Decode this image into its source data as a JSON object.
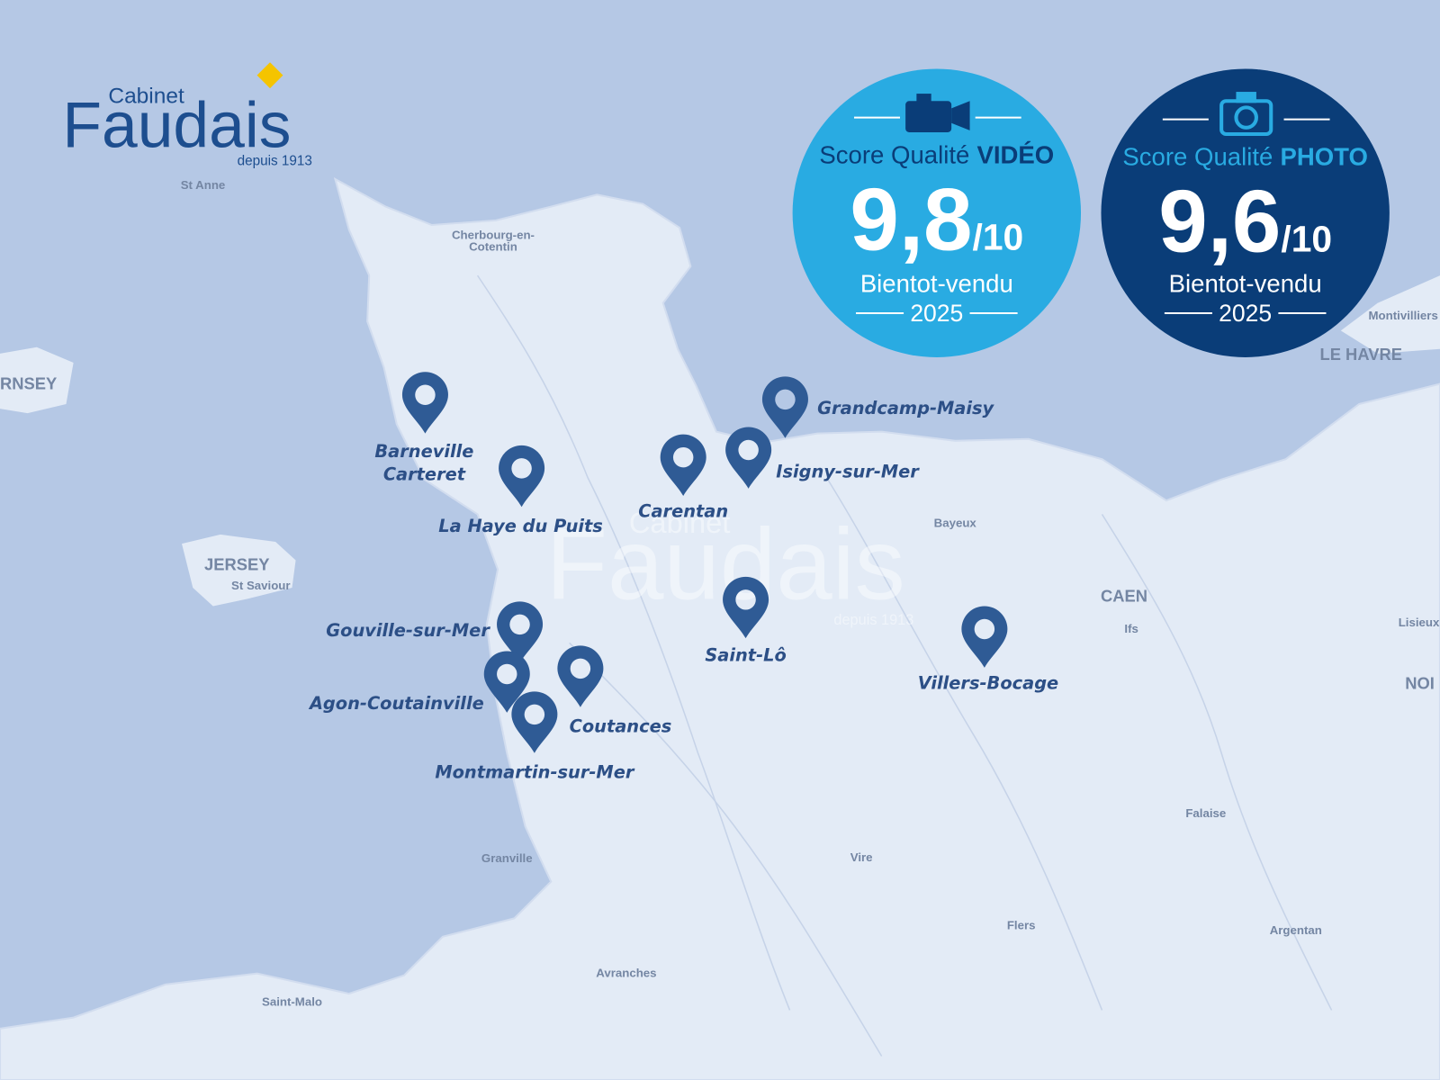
{
  "logo": {
    "small": "Cabinet",
    "main": "Faudais",
    "since": "depuis 1913"
  },
  "badges": [
    {
      "title_prefix": "Score Qualité",
      "title_strong": "VIDÉO",
      "score": "9,8",
      "scale": "/10",
      "brand": "Bientot-vendu",
      "year": "2025"
    },
    {
      "title_prefix": "Score Qualité",
      "title_strong": "PHOTO",
      "score": "9,6",
      "scale": "/10",
      "brand": "Bientot-vendu",
      "year": "2025"
    }
  ],
  "places": [
    {
      "lines": [
        "Barneville",
        "Carteret"
      ]
    },
    {
      "lines": [
        "La Haye du Puits"
      ]
    },
    {
      "lines": [
        "Carentan"
      ]
    },
    {
      "lines": [
        "Isigny-sur-Mer"
      ]
    },
    {
      "lines": [
        "Grandcamp-Maisy"
      ]
    },
    {
      "lines": [
        "Gouville-sur-Mer"
      ]
    },
    {
      "lines": [
        "Agon-Coutainville"
      ]
    },
    {
      "lines": [
        "Coutances"
      ]
    },
    {
      "lines": [
        "Montmartin-sur-Mer"
      ]
    },
    {
      "lines": [
        "Saint-Lô"
      ]
    },
    {
      "lines": [
        "Villers-Bocage"
      ]
    }
  ],
  "map_labels": [
    "St Anne",
    "Cherbourg-en-",
    "Cotentin",
    "RNSEY",
    "JERSEY",
    "St Saviour",
    "Bayeux",
    "CAEN",
    "Ifs",
    "LE HAVRE",
    "Montivilliers",
    "Lisieux",
    "NOI",
    "Falaise",
    "Granville",
    "Vire",
    "Flers",
    "Argentan",
    "Avranches",
    "Saint-Malo"
  ],
  "watermark": {
    "small": "Cabinet",
    "main": "Faudais",
    "since": "depuis 1913"
  }
}
